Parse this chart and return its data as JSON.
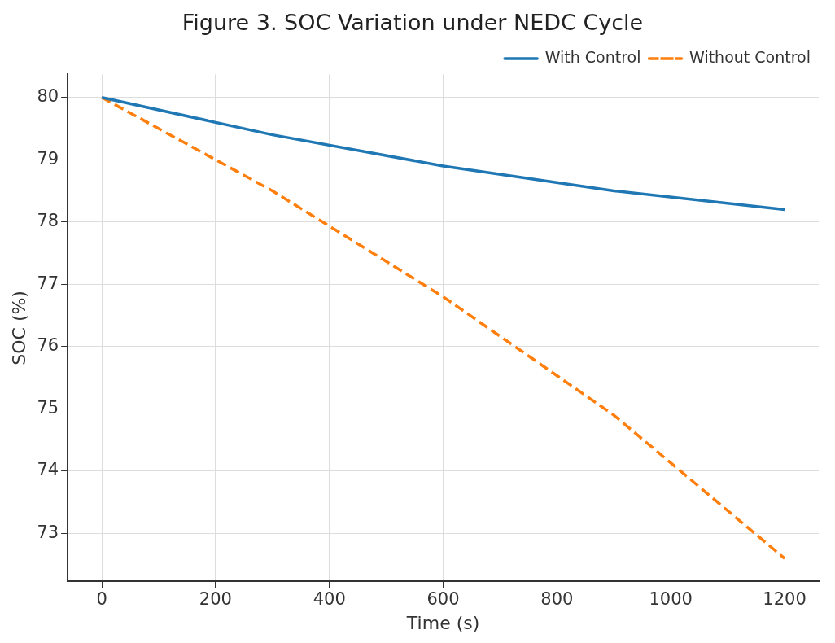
{
  "chart_data": {
    "type": "line",
    "title": "Figure 3. SOC Variation under NEDC Cycle",
    "xlabel": "Time (s)",
    "ylabel": "SOC (%)",
    "x": [
      0,
      300,
      600,
      900,
      1200
    ],
    "series": [
      {
        "name": "With Control",
        "color": "#1f77b4",
        "values": [
          80,
          79.4,
          78.9,
          78.5,
          78.2
        ],
        "line_style": "solid"
      },
      {
        "name": "Without Control",
        "color": "#ff7f0e",
        "values": [
          80,
          78.5,
          76.8,
          74.9,
          72.6
        ],
        "line_style": "dashed"
      }
    ],
    "xlim": [
      -60,
      1260
    ],
    "xticks": [
      0,
      200,
      400,
      600,
      800,
      1000,
      1200
    ],
    "ylim": [
      72.23,
      80.37
    ],
    "yticks": [
      73,
      74,
      75,
      76,
      77,
      78,
      79,
      80
    ],
    "grid": true,
    "legend": "top right",
    "marker": "none"
  }
}
